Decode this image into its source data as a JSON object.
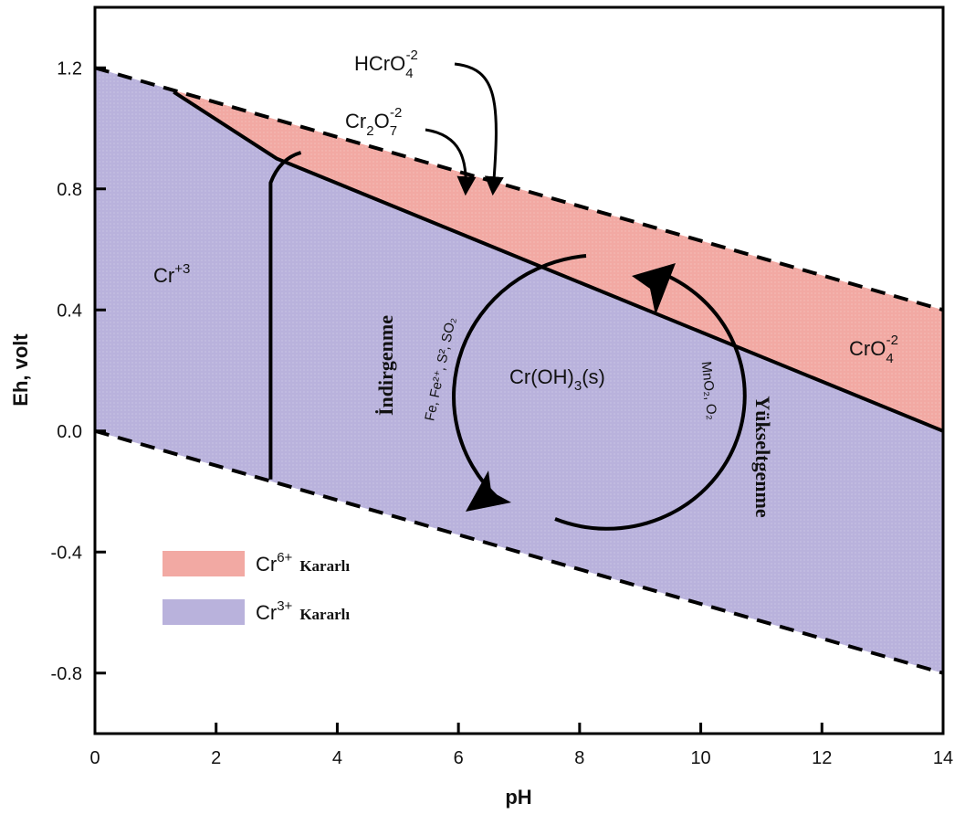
{
  "chart_data": {
    "type": "area",
    "xlabel": "pH",
    "ylabel": "Eh, volt",
    "xlim": [
      0,
      14
    ],
    "ylim": [
      -1.0,
      1.4
    ],
    "x_ticks": [
      "0",
      "2",
      "4",
      "6",
      "8",
      "10",
      "12",
      "14"
    ],
    "y_ticks": [
      "1.2",
      "0.8",
      "0.4",
      "0.0",
      "-0.4",
      "-0.8"
    ],
    "x_tick_values": [
      0,
      2,
      4,
      6,
      8,
      10,
      12,
      14
    ],
    "y_tick_values": [
      1.2,
      0.8,
      0.4,
      0.0,
      -0.4,
      -0.8
    ],
    "colors": {
      "cr6": "#f2a9a3",
      "cr3": "#b9b2dc",
      "line": "#000000"
    },
    "boundaries": {
      "water_upper": [
        [
          0,
          1.2
        ],
        [
          14,
          0.4
        ]
      ],
      "water_lower": [
        [
          0,
          0.0
        ],
        [
          14,
          -0.8
        ]
      ],
      "cr3_cr6": [
        [
          1.3,
          1.12
        ],
        [
          3.0,
          0.9
        ],
        [
          14,
          0.0
        ]
      ],
      "cr3_croh3": [
        [
          2.9,
          -0.16
        ],
        [
          2.9,
          0.82
        ],
        [
          3.05,
          0.9
        ],
        [
          3.4,
          0.92
        ]
      ]
    },
    "regions": {
      "hcro4": "HCrO",
      "hcro4_sub": "4",
      "hcro4_sup": "-2",
      "cr2o7_a": "Cr",
      "cr2o7_sub1": "2",
      "cr2o7_b": "O",
      "cr2o7_sub2": "7",
      "cr2o7_sup": "-2",
      "cr3_base": "Cr",
      "cr3_sup": "+3",
      "croh3_a": "Cr(OH)",
      "croh3_sub": "3",
      "croh3_b": "(s)",
      "cro4_base": "CrO",
      "cro4_sub": "4",
      "cro4_sup": "-2"
    },
    "cycle": {
      "reduction_label": "İndirgenme",
      "reduction_agents": "Fe, Fe²⁺, S², SO₂",
      "oxidation_label": "Yükseltgenme",
      "oxidation_agents": "MnO₂, O₂"
    },
    "legend": {
      "position": "bottom-left",
      "items": [
        {
          "base": "Cr",
          "sup": "6+",
          "label": "Kararlı",
          "color": "#f2a9a3"
        },
        {
          "base": "Cr",
          "sup": "3+",
          "label": "Kararlı",
          "color": "#b9b2dc"
        }
      ]
    }
  }
}
